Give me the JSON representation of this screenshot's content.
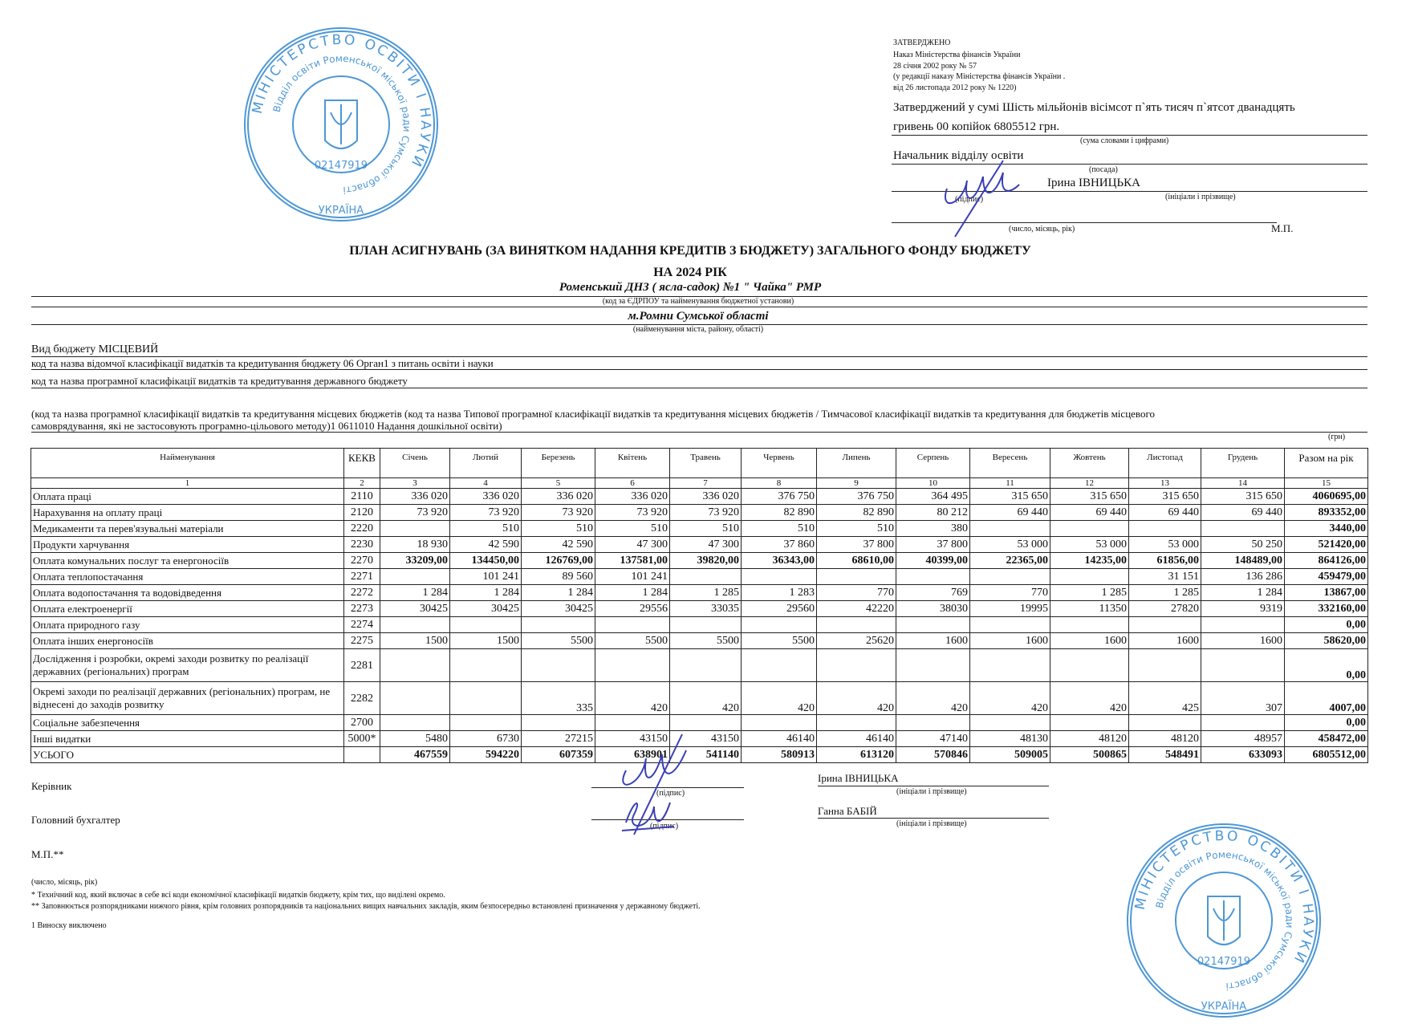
{
  "approval": {
    "heading": "ЗАТВЕРДЖЕНО",
    "lines": [
      "Наказ Міністерства фінансів України",
      "28 січня 2002 року № 57",
      "(у редакції наказу Міністерства фінансів України .",
      "від 26 листопада 2012 року № 1220)"
    ],
    "sum_line1": "Затверджений у сумі Шість мільйонів вісімсот п`ять тисяч п`ятсот дванадцять",
    "sum_line2": "гривень 00 копійок  6805512 грн.",
    "sum_caption": "(сума словами і цифрами)",
    "position": "Начальник відділу освіти",
    "position_caption": "(посада)",
    "signer": "Ірина ІВНИЦЬКА",
    "signature_caption": "(підпис)",
    "name_caption": "(ініціали і прізвище)",
    "date_caption": "(число, місяць, рік)",
    "seal_mark": "М.П."
  },
  "title": {
    "line1": "ПЛАН АСИГНУВАНЬ (ЗА ВИНЯТКОМ НАДАННЯ КРЕДИТІВ З БЮДЖЕТУ) ЗАГАЛЬНОГО ФОНДУ БЮДЖЕТУ",
    "line2": "НА 2024 РІК",
    "institution": "Роменський ДНЗ ( ясла-садок) №1 \" Чайка\" РМР",
    "institution_caption": "(код за ЄДРПОУ та найменування  бюджетної установи)",
    "city": "м.Ромни Сумської області",
    "city_caption": "(найменування міста, району, області)"
  },
  "meta": {
    "budget_type": "Вид бюджету  МІСЦЕВИЙ",
    "departmental": "код та назва відомчої класифікації видатків та кредитування бюджету   06  Орган1 з питань освіти і науки",
    "program": "код та назва програмної класифікації видатків та кредитування державного бюджету",
    "local_program1": "(код та назва програмної класифікації видатків та кредитування місцевих бюджетів (код та назва Типової програмної класифікації видатків та кредитування місцевих бюджетів / Тимчасової класифікації видатків та кредитування для бюджетів місцевого",
    "local_program2": "самоврядування, які не застосовують програмно-цільового методу)1    0611010  Надання дошкільної освіти)",
    "unit": "(грн)"
  },
  "table": {
    "headers": [
      "Найменування",
      "КЕКВ",
      "Січень",
      "Лютий",
      "Березень",
      "Квітень",
      "Травень",
      "Червень",
      "Липень",
      "Серпень",
      "Вересень",
      "Жовтень",
      "Листопад",
      "Грудень",
      "Разом на рік"
    ],
    "numbers": [
      "1",
      "2",
      "3",
      "4",
      "5",
      "6",
      "7",
      "8",
      "9",
      "10",
      "11",
      "12",
      "13",
      "14",
      "15"
    ],
    "rows": [
      {
        "name": "Оплата праці",
        "kekv": "2110",
        "values": [
          "336 020",
          "336 020",
          "336 020",
          "336 020",
          "336 020",
          "376 750",
          "376 750",
          "364 495",
          "315 650",
          "315 650",
          "315 650",
          "315 650"
        ],
        "total": "4060695,00"
      },
      {
        "name": "Нарахування на оплату праці",
        "kekv": "2120",
        "values": [
          "73 920",
          "73 920",
          "73 920",
          "73 920",
          "73 920",
          "82 890",
          "82 890",
          "80 212",
          "69 440",
          "69 440",
          "69 440",
          "69 440"
        ],
        "total": "893352,00"
      },
      {
        "name": "Медикаменти та перев'язувальні матеріали",
        "kekv": "2220",
        "values": [
          "",
          "510",
          "510",
          "510",
          "510",
          "510",
          "510",
          "380",
          "",
          "",
          "",
          ""
        ],
        "total": "3440,00"
      },
      {
        "name": "Продукти харчування",
        "kekv": "2230",
        "values": [
          "18 930",
          "42 590",
          "42 590",
          "47 300",
          "47 300",
          "37 860",
          "37 800",
          "37 800",
          "53 000",
          "53 000",
          "53 000",
          "50 250"
        ],
        "total": "521420,00"
      },
      {
        "name": "Оплата комунальних послуг та енергоносіїв",
        "kekv": "2270",
        "bold": true,
        "values": [
          "33209,00",
          "134450,00",
          "126769,00",
          "137581,00",
          "39820,00",
          "36343,00",
          "68610,00",
          "40399,00",
          "22365,00",
          "14235,00",
          "61856,00",
          "148489,00"
        ],
        "total": "864126,00"
      },
      {
        "name": "Оплата теплопостачання",
        "kekv": "2271",
        "values": [
          "",
          "101 241",
          "89 560",
          "101 241",
          "",
          "",
          "",
          "",
          "",
          "",
          "31 151",
          "136 286"
        ],
        "total": "459479,00"
      },
      {
        "name": "Оплата водопостачання та водовідведення",
        "kekv": "2272",
        "values": [
          "1 284",
          "1 284",
          "1 284",
          "1 284",
          "1 285",
          "1 283",
          "770",
          "769",
          "770",
          "1 285",
          "1 285",
          "1 284"
        ],
        "total": "13867,00"
      },
      {
        "name": "Оплата електроенергії",
        "kekv": "2273",
        "values": [
          "30425",
          "30425",
          "30425",
          "29556",
          "33035",
          "29560",
          "42220",
          "38030",
          "19995",
          "11350",
          "27820",
          "9319"
        ],
        "total": "332160,00"
      },
      {
        "name": "Оплата природного газу",
        "kekv": "2274",
        "values": [
          "",
          "",
          "",
          "",
          "",
          "",
          "",
          "",
          "",
          "",
          "",
          ""
        ],
        "total": "0,00"
      },
      {
        "name": "Оплата інших енергоносіїв",
        "kekv": "2275",
        "values": [
          "1500",
          "1500",
          "5500",
          "5500",
          "5500",
          "5500",
          "25620",
          "1600",
          "1600",
          "1600",
          "1600",
          "1600"
        ],
        "total": "58620,00"
      },
      {
        "name": "Дослідження і розробки, окремі заходи розвитку по реалізації державних (регіональних) програм",
        "kekv": "2281",
        "double": true,
        "values": [
          "",
          "",
          "",
          "",
          "",
          "",
          "",
          "",
          "",
          "",
          "",
          ""
        ],
        "total": "0,00"
      },
      {
        "name": "Окремі заходи по реалізації державних (регіональних) програм, не віднесені до заходів розвитку",
        "kekv": "2282",
        "double": true,
        "values": [
          "",
          "",
          "335",
          "420",
          "420",
          "420",
          "420",
          "420",
          "420",
          "420",
          "425",
          "307"
        ],
        "total": "4007,00"
      },
      {
        "name": "Соціальне забезпечення",
        "kekv": "2700",
        "values": [
          "",
          "",
          "",
          "",
          "",
          "",
          "",
          "",
          "",
          "",
          "",
          ""
        ],
        "total": "0,00"
      },
      {
        "name": "Інші видатки",
        "kekv": "5000*",
        "values": [
          "5480",
          "6730",
          "27215",
          "43150",
          "43150",
          "46140",
          "46140",
          "47140",
          "48130",
          "48120",
          "48120",
          "48957"
        ],
        "total": "458472,00"
      },
      {
        "name": "УСЬОГО",
        "kekv": "",
        "bold": true,
        "values": [
          "467559",
          "594220",
          "607359",
          "638901",
          "541140",
          "580913",
          "613120",
          "570846",
          "509005",
          "500865",
          "548491",
          "633093"
        ],
        "total": "6805512,00"
      }
    ]
  },
  "footer": {
    "head_label": "Керівник",
    "accountant_label": "Головний бухгалтер",
    "seal_mark": "М.П.**",
    "date_caption": "(число, місяць, рік)",
    "signature_caption": "(підпис)",
    "name_caption": "(ініціали і прізвище)",
    "head_name": "Ірина ІВНИЦЬКА",
    "accountant_name": "Ганна БАБІЙ",
    "note1": "* Технічний код, який включає в себе всі коди економічної класифікації видатків бюджету, крім тих, що виділені окремо.",
    "note2": "** Заповнюється розпорядниками нижчого рівня, крім головних розпорядників та національних вищих навчальних закладів, яким безпосередньо встановлені призначення у державному бюджеті.",
    "note3": "1 Виноску виключено"
  },
  "stamp": {
    "outer_text": "МІНІСТЕРСТВО ОСВІТИ І НАУКИ",
    "inner_text": "Відділ освіти Роменської міської ради Сумської області",
    "code": "02147919",
    "country": "УКРАЇНА",
    "color": "#2f86d0"
  },
  "colors": {
    "ink": "#3a3fb5",
    "stamp": "#2f86d0"
  }
}
